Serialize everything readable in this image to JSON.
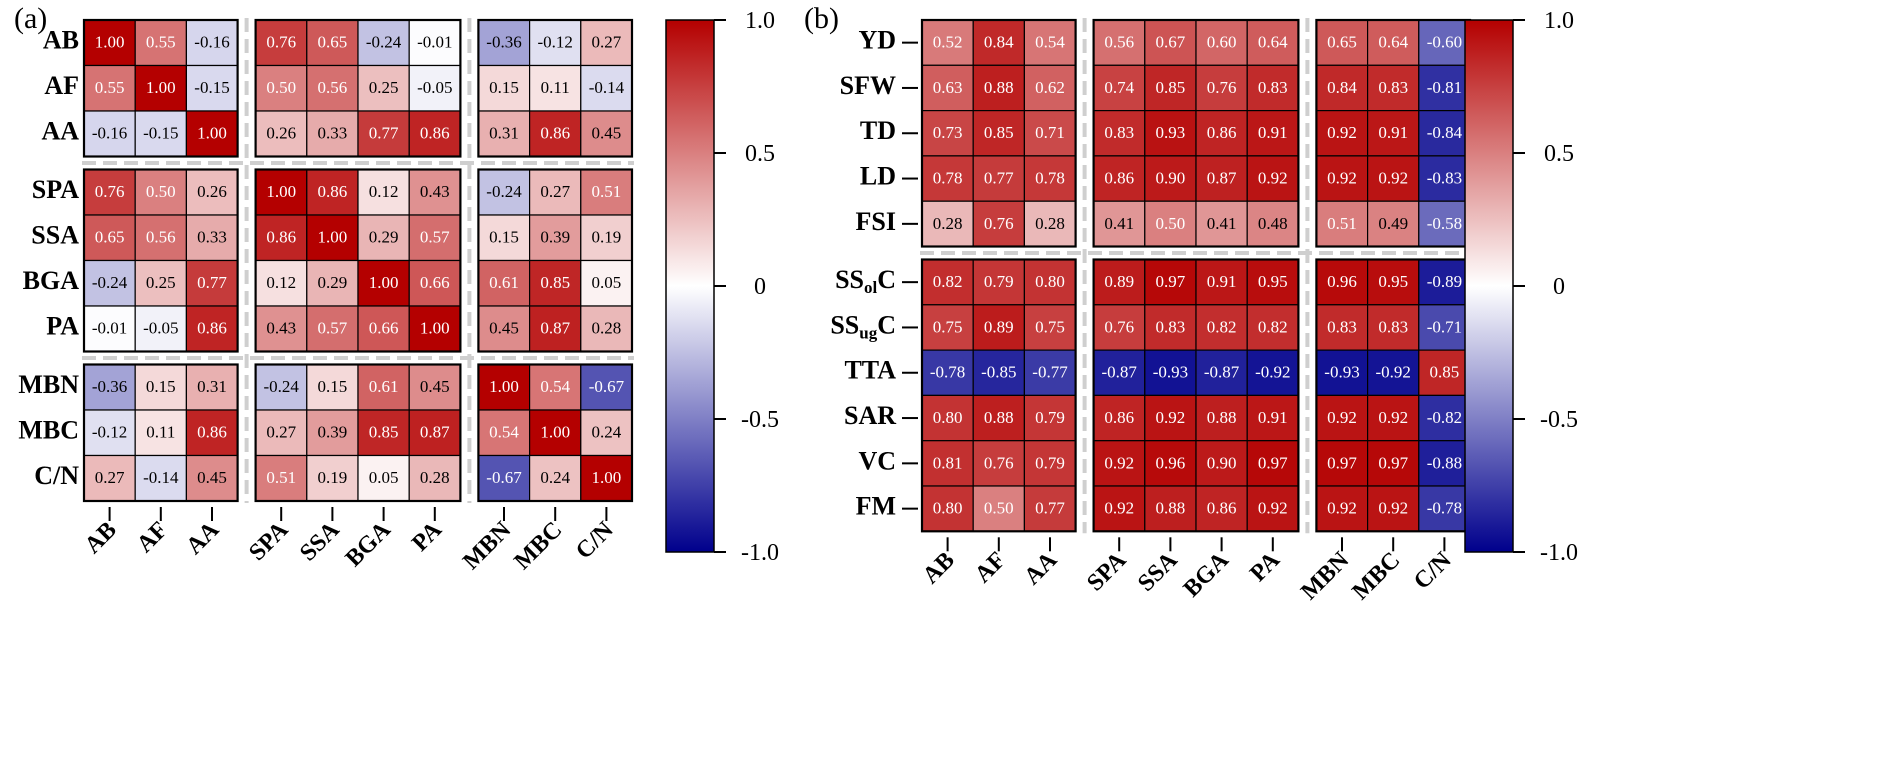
{
  "chart_data": [
    {
      "type": "heatmap",
      "panel": "(a)",
      "rows": [
        "AB",
        "AF",
        "AA",
        "SPA",
        "SSA",
        "BGA",
        "PA",
        "MBN",
        "MBC",
        "C/N"
      ],
      "columns": [
        "AB",
        "AF",
        "AA",
        "SPA",
        "SSA",
        "BGA",
        "PA",
        "MBN",
        "MBC",
        "C/N"
      ],
      "row_groups": [
        3,
        4,
        3
      ],
      "col_groups": [
        3,
        4,
        3
      ],
      "values": [
        [
          1.0,
          0.55,
          -0.16,
          0.76,
          0.65,
          -0.24,
          -0.01,
          -0.36,
          -0.12,
          0.27
        ],
        [
          0.55,
          1.0,
          -0.15,
          0.5,
          0.56,
          0.25,
          -0.05,
          0.15,
          0.11,
          -0.14
        ],
        [
          -0.16,
          -0.15,
          1.0,
          0.26,
          0.33,
          0.77,
          0.86,
          0.31,
          0.86,
          0.45
        ],
        [
          0.76,
          0.5,
          0.26,
          1.0,
          0.86,
          0.12,
          0.43,
          -0.24,
          0.27,
          0.51
        ],
        [
          0.65,
          0.56,
          0.33,
          0.86,
          1.0,
          0.29,
          0.57,
          0.15,
          0.39,
          0.19
        ],
        [
          -0.24,
          0.25,
          0.77,
          0.12,
          0.29,
          1.0,
          0.66,
          0.61,
          0.85,
          0.05
        ],
        [
          -0.01,
          -0.05,
          0.86,
          0.43,
          0.57,
          0.66,
          1.0,
          0.45,
          0.87,
          0.28
        ],
        [
          -0.36,
          0.15,
          0.31,
          -0.24,
          0.15,
          0.61,
          0.45,
          1.0,
          0.54,
          -0.67
        ],
        [
          -0.12,
          0.11,
          0.86,
          0.27,
          0.39,
          0.85,
          0.87,
          0.54,
          1.0,
          0.24
        ],
        [
          0.27,
          -0.14,
          0.45,
          0.51,
          0.19,
          0.05,
          0.28,
          -0.67,
          0.24,
          1.0
        ]
      ],
      "colorbar": {
        "min": -1.0,
        "max": 1.0,
        "ticks": [
          "1.0",
          "0.5",
          "0",
          "-0.5",
          "-1.0"
        ]
      }
    },
    {
      "type": "heatmap",
      "panel": "(b)",
      "rows": [
        "YD",
        "SFW",
        "TD",
        "LD",
        "FSI",
        "SS_ol_C",
        "SS_ug_C",
        "TTA",
        "SAR",
        "VC",
        "FM"
      ],
      "columns": [
        "AB",
        "AF",
        "AA",
        "SPA",
        "SSA",
        "BGA",
        "PA",
        "MBN",
        "MBC",
        "C/N"
      ],
      "row_groups": [
        5,
        6
      ],
      "col_groups": [
        3,
        4,
        3
      ],
      "values": [
        [
          0.52,
          0.84,
          0.54,
          0.56,
          0.67,
          0.6,
          0.64,
          0.65,
          0.64,
          -0.6
        ],
        [
          0.63,
          0.88,
          0.62,
          0.74,
          0.85,
          0.76,
          0.83,
          0.84,
          0.83,
          -0.81
        ],
        [
          0.73,
          0.85,
          0.71,
          0.83,
          0.93,
          0.86,
          0.91,
          0.92,
          0.91,
          -0.84
        ],
        [
          0.78,
          0.77,
          0.78,
          0.86,
          0.9,
          0.87,
          0.92,
          0.92,
          0.92,
          -0.83
        ],
        [
          0.28,
          0.76,
          0.28,
          0.41,
          0.5,
          0.41,
          0.48,
          0.51,
          0.49,
          -0.58
        ],
        [
          0.82,
          0.79,
          0.8,
          0.89,
          0.97,
          0.91,
          0.95,
          0.96,
          0.95,
          -0.89
        ],
        [
          0.75,
          0.89,
          0.75,
          0.76,
          0.83,
          0.82,
          0.82,
          0.83,
          0.83,
          -0.71
        ],
        [
          -0.78,
          -0.85,
          -0.77,
          -0.87,
          -0.93,
          -0.87,
          -0.92,
          -0.93,
          -0.92,
          0.85
        ],
        [
          0.8,
          0.88,
          0.79,
          0.86,
          0.92,
          0.88,
          0.91,
          0.92,
          0.92,
          -0.82
        ],
        [
          0.81,
          0.76,
          0.79,
          0.92,
          0.96,
          0.9,
          0.97,
          0.97,
          0.97,
          -0.88
        ],
        [
          0.8,
          0.5,
          0.77,
          0.92,
          0.88,
          0.86,
          0.92,
          0.92,
          0.92,
          -0.78
        ]
      ],
      "colorbar": {
        "min": -1.0,
        "max": 1.0,
        "ticks": [
          "1.0",
          "0.5",
          "0",
          "-0.5",
          "-1.0"
        ]
      }
    }
  ],
  "colors": {
    "positive": "#b40000",
    "neutral": "#ffffff",
    "negative": "#00008c",
    "separator": "#cfcfcf",
    "border": "#000000"
  }
}
